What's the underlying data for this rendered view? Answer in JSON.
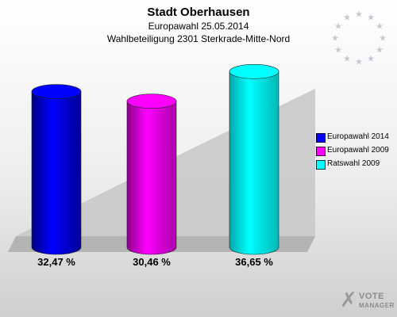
{
  "header": {
    "title": "Stadt Oberhausen",
    "subtitle1": "Europawahl 25.05.2014",
    "subtitle2": "Wahlbeteiligung 2301 Sterkrade-Mitte-Nord"
  },
  "chart_data": {
    "type": "bar",
    "title": "Stadt Oberhausen",
    "subtitle": "Europawahl 25.05.2014 Wahlbeteiligung 2301 Sterkrade-Mitte-Nord",
    "categories": [
      "Europawahl 2014",
      "Europawahl 2009",
      "Ratswahl 2009"
    ],
    "values": [
      32.47,
      30.46,
      36.65
    ],
    "value_labels": [
      "32,47 %",
      "30,46 %",
      "36,65 %"
    ],
    "colors": [
      "#0000ff",
      "#ff00ff",
      "#00ffff"
    ],
    "ylim": [
      0,
      40
    ],
    "grid": false,
    "legend_position": "right"
  },
  "legend": {
    "items": [
      {
        "label": "Europawahl 2014",
        "color": "#0000ff"
      },
      {
        "label": "Europawahl 2009",
        "color": "#ff00ff"
      },
      {
        "label": "Ratswahl 2009",
        "color": "#00ffff"
      }
    ]
  },
  "decor": {
    "emblem_icon": "eu-stars-icon",
    "watermark_icon": "vote-check-icon",
    "watermark_line1": "VOTE",
    "watermark_line2": "MANAGER"
  }
}
